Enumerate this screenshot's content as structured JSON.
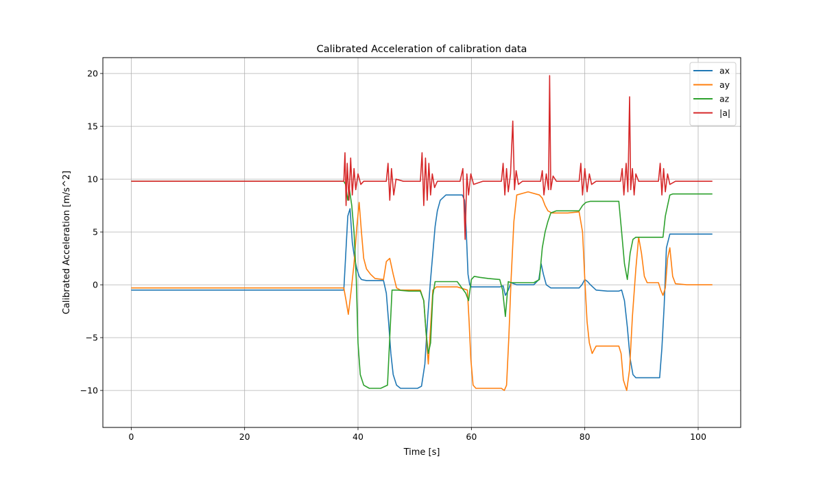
{
  "chart_data": {
    "type": "line",
    "title": "Calibrated Acceleration of calibration data",
    "xlabel": "Time [s]",
    "ylabel": "Calibrated Acceleration [m/s^2]",
    "xlim": [
      -5,
      107.5
    ],
    "ylim": [
      -13.5,
      21.5
    ],
    "xticks": [
      0,
      20,
      40,
      60,
      80,
      100
    ],
    "yticks": [
      -10,
      -5,
      0,
      5,
      10,
      15,
      20
    ],
    "ytick_labels": [
      "−10",
      "−5",
      "0",
      "5",
      "10",
      "15",
      "20"
    ],
    "grid": true,
    "legend_position": "top-right",
    "series": [
      {
        "name": "ax",
        "color": "#1f77b4",
        "x": [
          0,
          37.5,
          37.8,
          38.2,
          38.6,
          39.0,
          39.4,
          39.8,
          40.2,
          40.6,
          41.0,
          41.5,
          42,
          43,
          44.5,
          45.0,
          45.4,
          45.8,
          46.2,
          46.8,
          47.5,
          49,
          50.5,
          51.2,
          51.8,
          52.3,
          52.8,
          53.2,
          53.6,
          54.0,
          54.5,
          55.5,
          57,
          58.4,
          58.8,
          59.1,
          59.4,
          59.7,
          60.0,
          60.5,
          61.5,
          63,
          65,
          65.6,
          66.0,
          66.5,
          67.0,
          67.5,
          68,
          69,
          71,
          71.9,
          72.3,
          72.7,
          73.2,
          74,
          75,
          77,
          79,
          79.5,
          80.0,
          80.5,
          81.0,
          82,
          84,
          86,
          86.5,
          87.0,
          87.5,
          88.0,
          88.5,
          89.0,
          90,
          92,
          93.2,
          93.6,
          94.0,
          94.4,
          95.0,
          96,
          98,
          100,
          102.5
        ],
        "y": [
          -0.5,
          -0.5,
          2.5,
          6.5,
          7.2,
          4.0,
          2.5,
          1.5,
          0.8,
          0.5,
          0.45,
          0.4,
          0.4,
          0.4,
          0.4,
          -0.8,
          -3.5,
          -6.5,
          -8.5,
          -9.5,
          -9.8,
          -9.8,
          -9.8,
          -9.6,
          -7.5,
          -3.0,
          0.5,
          3.0,
          5.5,
          7.0,
          8.0,
          8.5,
          8.5,
          8.5,
          8.0,
          5.0,
          1.0,
          0.0,
          -0.2,
          -0.2,
          -0.2,
          -0.2,
          -0.2,
          -0.1,
          -1.0,
          -0.5,
          0.2,
          0.1,
          0.0,
          0.0,
          0.0,
          0.5,
          2.0,
          1.0,
          0.0,
          -0.3,
          -0.3,
          -0.3,
          -0.3,
          0.0,
          0.5,
          0.3,
          0.0,
          -0.5,
          -0.6,
          -0.6,
          -0.5,
          -1.5,
          -4.0,
          -7.0,
          -8.5,
          -8.8,
          -8.8,
          -8.8,
          -8.8,
          -6.0,
          -2.0,
          3.5,
          4.8,
          4.8,
          4.8,
          4.8,
          4.8
        ]
      },
      {
        "name": "ay",
        "color": "#ff7f0e",
        "x": [
          0,
          37.5,
          37.9,
          38.3,
          38.8,
          39.3,
          39.8,
          40.2,
          40.6,
          41.0,
          41.5,
          42.2,
          43,
          44.5,
          45.0,
          45.6,
          46.2,
          46.8,
          47.5,
          49,
          51,
          51.6,
          52.0,
          52.4,
          52.8,
          53.2,
          53.8,
          55,
          57.5,
          59.3,
          59.6,
          59.9,
          60.3,
          60.8,
          62,
          64,
          65.3,
          65.8,
          66.2,
          66.6,
          67.0,
          67.5,
          68,
          70,
          72,
          72.5,
          73.0,
          73.5,
          74.2,
          75,
          77,
          79,
          79.6,
          80.0,
          80.4,
          80.8,
          81.3,
          82,
          84,
          86,
          86.4,
          86.8,
          87.4,
          87.9,
          88.4,
          89.0,
          89.5,
          90.0,
          90.5,
          91,
          93,
          93.4,
          93.8,
          94.2,
          94.6,
          95.0,
          95.5,
          96,
          98,
          100,
          102.5
        ],
        "y": [
          -0.3,
          -0.3,
          -1.5,
          -2.8,
          -0.5,
          2.0,
          5.5,
          7.8,
          5.0,
          2.5,
          1.5,
          1.0,
          0.6,
          0.5,
          2.2,
          2.5,
          1.0,
          -0.3,
          -0.5,
          -0.5,
          -0.5,
          -1.5,
          -4.5,
          -7.5,
          -4.0,
          -0.5,
          -0.2,
          -0.2,
          -0.2,
          -0.5,
          -3.5,
          -7.0,
          -9.5,
          -9.8,
          -9.8,
          -9.8,
          -9.8,
          -10.0,
          -9.5,
          -5.0,
          0.5,
          6.0,
          8.5,
          8.8,
          8.5,
          8.2,
          7.5,
          7.0,
          6.8,
          6.8,
          6.8,
          6.9,
          5.0,
          0.5,
          -3.5,
          -5.5,
          -6.5,
          -5.8,
          -5.8,
          -5.8,
          -6.5,
          -9.0,
          -10.0,
          -8.0,
          -3.0,
          1.5,
          4.5,
          3.0,
          0.8,
          0.2,
          0.2,
          -0.5,
          -1.0,
          -0.3,
          2.5,
          3.5,
          0.8,
          0.1,
          0.0,
          0.0,
          0.0
        ]
      },
      {
        "name": "az",
        "color": "#2ca02c",
        "x": [
          0,
          37.5,
          37.8,
          38.2,
          38.5,
          38.9,
          39.3,
          39.7,
          40.0,
          40.4,
          41,
          42,
          44,
          45.2,
          45.6,
          46.0,
          46.5,
          47,
          49,
          51,
          51.6,
          52.0,
          52.4,
          52.8,
          53.2,
          53.6,
          54.0,
          55,
          57.5,
          59,
          59.5,
          60.0,
          60.5,
          61.5,
          63,
          65,
          65.5,
          66.0,
          66.5,
          67,
          69,
          71,
          72,
          72.5,
          73.0,
          73.5,
          74.0,
          75,
          77,
          79,
          79.6,
          80.2,
          81,
          83,
          86,
          86.5,
          87.0,
          87.5,
          88.0,
          88.5,
          89.0,
          90,
          92,
          93.8,
          94.2,
          94.6,
          95.0,
          95.5,
          96,
          98,
          100,
          102.5
        ],
        "y": [
          9.8,
          9.8,
          9.5,
          8.0,
          9.0,
          7.5,
          5.0,
          0.5,
          -5.5,
          -8.5,
          -9.5,
          -9.8,
          -9.8,
          -9.5,
          -5.0,
          -0.5,
          -0.5,
          -0.5,
          -0.6,
          -0.6,
          -1.5,
          -4.5,
          -6.5,
          -5.5,
          -1.0,
          0.3,
          0.3,
          0.3,
          0.3,
          -0.8,
          -1.5,
          0.5,
          0.8,
          0.7,
          0.6,
          0.5,
          -0.5,
          -3.0,
          0.3,
          0.2,
          0.2,
          0.2,
          0.5,
          3.5,
          5.0,
          6.0,
          6.8,
          7.0,
          7.0,
          7.0,
          7.5,
          7.8,
          7.9,
          7.9,
          7.9,
          5.0,
          2.0,
          0.5,
          3.0,
          4.3,
          4.5,
          4.5,
          4.5,
          4.5,
          6.5,
          7.5,
          8.5,
          8.6,
          8.6,
          8.6,
          8.6,
          8.6
        ]
      },
      {
        "name": "|a|",
        "color": "#d62728",
        "x": [
          0,
          37.5,
          37.7,
          37.9,
          38.1,
          38.4,
          38.7,
          39.0,
          39.3,
          39.6,
          40.0,
          40.5,
          41.0,
          42,
          44,
          45.0,
          45.3,
          45.6,
          45.9,
          46.3,
          46.7,
          48,
          51,
          51.3,
          51.6,
          51.9,
          52.2,
          52.5,
          52.8,
          53.1,
          53.5,
          54.0,
          55,
          58,
          58.5,
          58.9,
          59.2,
          59.5,
          59.9,
          60.4,
          62,
          64,
          65.3,
          65.6,
          65.9,
          66.2,
          66.5,
          66.9,
          67.3,
          67.6,
          67.9,
          68.3,
          69,
          71,
          72.2,
          72.5,
          72.8,
          73.2,
          73.6,
          73.8,
          74.0,
          74.4,
          75,
          77,
          79,
          79.3,
          79.6,
          80.0,
          80.4,
          80.8,
          81.2,
          82,
          84,
          86.3,
          86.6,
          86.9,
          87.3,
          87.6,
          87.9,
          88.1,
          88.4,
          88.7,
          89.0,
          89.5,
          90,
          92,
          93.0,
          93.3,
          93.6,
          93.9,
          94.2,
          94.6,
          95.0,
          96,
          98,
          100,
          102.5
        ],
        "y": [
          9.8,
          9.8,
          12.5,
          7.5,
          11.5,
          8.0,
          12.0,
          8.5,
          11.0,
          9.0,
          10.5,
          9.5,
          9.8,
          9.8,
          9.8,
          9.8,
          11.5,
          8.0,
          11.0,
          8.5,
          10.0,
          9.8,
          9.8,
          12.5,
          7.5,
          12.0,
          8.0,
          11.5,
          8.5,
          10.5,
          9.2,
          9.8,
          9.8,
          9.8,
          11.0,
          4.3,
          10.5,
          8.5,
          10.5,
          9.5,
          9.8,
          9.8,
          9.8,
          11.5,
          8.5,
          11.0,
          8.8,
          10.5,
          15.5,
          9.0,
          10.8,
          9.5,
          9.8,
          9.8,
          9.8,
          10.8,
          8.5,
          10.5,
          9.0,
          19.8,
          9.0,
          10.3,
          9.8,
          9.8,
          9.8,
          11.5,
          8.5,
          11.0,
          8.8,
          10.5,
          9.5,
          9.8,
          9.8,
          9.8,
          11.0,
          8.5,
          11.5,
          8.8,
          17.8,
          9.0,
          11.0,
          8.5,
          10.5,
          9.8,
          9.8,
          9.8,
          9.8,
          11.5,
          8.5,
          11.0,
          8.8,
          10.5,
          9.5,
          9.8,
          9.8,
          9.8,
          9.8
        ]
      }
    ]
  }
}
